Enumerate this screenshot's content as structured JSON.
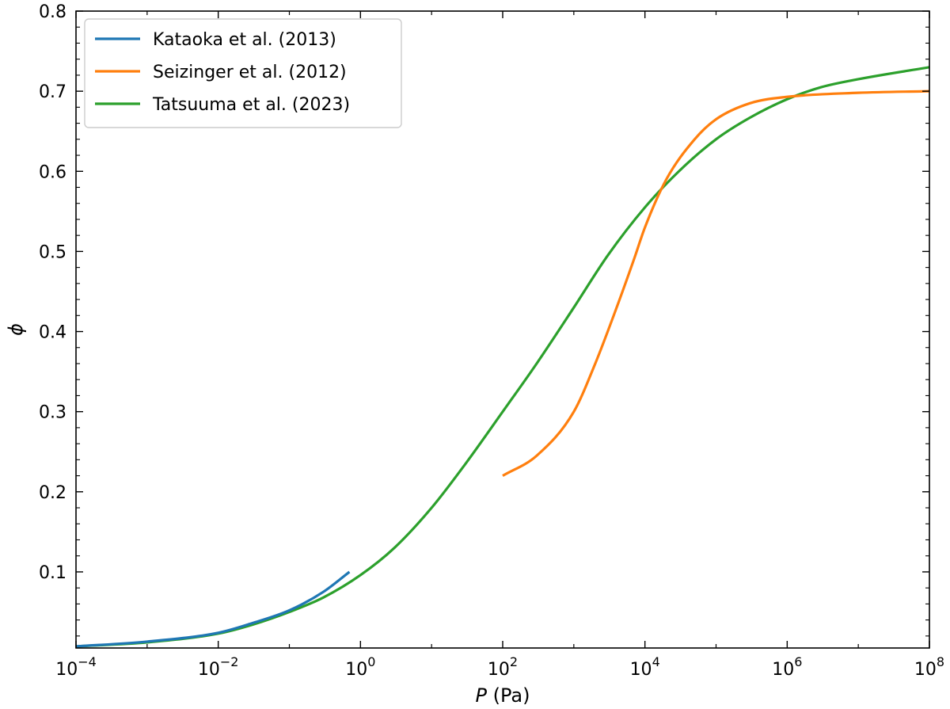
{
  "chart_data": {
    "type": "line",
    "xlabel_var": "P",
    "xlabel_unit": " (Pa)",
    "ylabel": "ϕ",
    "xscale": "log",
    "xlim": [
      0.0001,
      100000000
    ],
    "ylim": [
      0.005,
      0.8
    ],
    "grid": false,
    "legend_position": "upper-left",
    "x_ticks": [
      {
        "value": 0.0001,
        "base": "10",
        "exp": "−4"
      },
      {
        "value": 0.01,
        "base": "10",
        "exp": "−2"
      },
      {
        "value": 1,
        "base": "10",
        "exp": "0"
      },
      {
        "value": 100,
        "base": "10",
        "exp": "2"
      },
      {
        "value": 10000,
        "base": "10",
        "exp": "4"
      },
      {
        "value": 1000000,
        "base": "10",
        "exp": "6"
      },
      {
        "value": 100000000,
        "base": "10",
        "exp": "8"
      }
    ],
    "y_ticks": [
      {
        "value": 0.1,
        "label": "0.1"
      },
      {
        "value": 0.2,
        "label": "0.2"
      },
      {
        "value": 0.3,
        "label": "0.3"
      },
      {
        "value": 0.4,
        "label": "0.4"
      },
      {
        "value": 0.5,
        "label": "0.5"
      },
      {
        "value": 0.6,
        "label": "0.6"
      },
      {
        "value": 0.7,
        "label": "0.7"
      },
      {
        "value": 0.8,
        "label": "0.8"
      }
    ],
    "series": [
      {
        "name": "Kataoka et al. (2013)",
        "color": "#1f77b4",
        "x": [
          0.0001,
          0.001,
          0.01,
          0.03,
          0.1,
          0.3,
          0.7
        ],
        "y": [
          0.007,
          0.013,
          0.024,
          0.036,
          0.052,
          0.075,
          0.1
        ]
      },
      {
        "name": "Seizinger et al. (2012)",
        "color": "#ff7f0e",
        "x": [
          100,
          300,
          1000,
          2000,
          4000,
          7000,
          10000,
          20000,
          50000,
          100000,
          300000,
          1000000,
          10000000,
          100000000
        ],
        "y": [
          0.22,
          0.245,
          0.3,
          0.36,
          0.43,
          0.49,
          0.53,
          0.59,
          0.64,
          0.665,
          0.685,
          0.693,
          0.698,
          0.7
        ]
      },
      {
        "name": "Tatsuuma et al. (2023)",
        "color": "#2ca02c",
        "x": [
          0.0001,
          0.001,
          0.01,
          0.03,
          0.1,
          0.3,
          1,
          3,
          10,
          30,
          100,
          300,
          1000,
          3000,
          10000,
          30000,
          100000,
          300000,
          1000000,
          3000000,
          10000000,
          100000000
        ],
        "y": [
          0.007,
          0.012,
          0.023,
          0.034,
          0.05,
          0.068,
          0.096,
          0.13,
          0.18,
          0.235,
          0.3,
          0.36,
          0.43,
          0.495,
          0.555,
          0.6,
          0.64,
          0.667,
          0.69,
          0.705,
          0.715,
          0.73
        ]
      }
    ]
  }
}
